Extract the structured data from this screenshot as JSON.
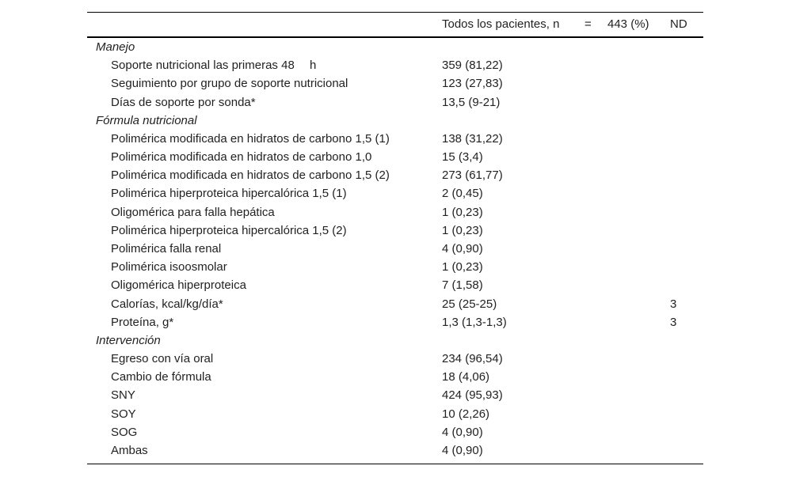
{
  "header": {
    "cells": [
      "Todos los pacientes, n",
      "=",
      "443 (%)",
      "ND"
    ]
  },
  "sections": [
    {
      "title": "Manejo",
      "rows": [
        {
          "label": "Soporte nutricional las primeras 48  h",
          "value": "359 (81,22)"
        },
        {
          "label": "Seguimiento por grupo de soporte nutricional",
          "value": "123 (27,83)"
        },
        {
          "label": "Días de soporte por sonda*",
          "value": "13,5 (9-21)"
        }
      ]
    },
    {
      "title": "Fórmula nutricional",
      "rows": [
        {
          "label": "Polimérica modificada en hidratos de carbono 1,5 (1)",
          "value": "138 (31,22)"
        },
        {
          "label": "Polimérica modificada en hidratos de carbono 1,0",
          "value": "15 (3,4)"
        },
        {
          "label": "Polimérica modificada en hidratos de carbono 1,5 (2)",
          "value": "273 (61,77)"
        },
        {
          "label": "Polimérica hiperproteica hipercalórica 1,5 (1)",
          "value": "2 (0,45)"
        },
        {
          "label": "Oligomérica para falla hepática",
          "value": "1 (0,23)"
        },
        {
          "label": "Polimérica hiperproteica hipercalórica 1,5 (2)",
          "value": "1 (0,23)"
        },
        {
          "label": "Polimérica falla renal",
          "value": "4 (0,90)"
        },
        {
          "label": "Polimérica isoosmolar",
          "value": "1 (0,23)"
        },
        {
          "label": "Oligomérica hiperproteica",
          "value": "7 (1,58)"
        },
        {
          "label": "Calorías, kcal/kg/día*",
          "value": "25 (25-25)",
          "nd": "3"
        },
        {
          "label": "Proteína, g*",
          "value": "1,3 (1,3-1,3)",
          "nd": "3"
        }
      ]
    },
    {
      "title": "Intervención",
      "rows": [
        {
          "label": "Egreso con vía oral",
          "value": "234 (96,54)"
        },
        {
          "label": "Cambio de fórmula",
          "value": "18 (4,06)"
        },
        {
          "label": "SNY",
          "value": "424 (95,93)"
        },
        {
          "label": "SOY",
          "value": "10 (2,26)"
        },
        {
          "label": "SOG",
          "value": "4 (0,90)"
        },
        {
          "label": "Ambas",
          "value": "4 (0,90)"
        }
      ]
    }
  ]
}
